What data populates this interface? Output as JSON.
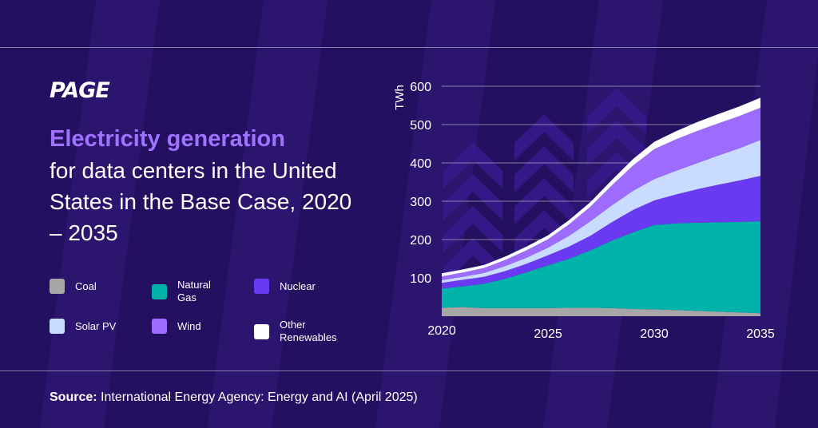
{
  "brand": {
    "logo": "PAGE"
  },
  "title": {
    "highlight": "Electricity generation",
    "rest": "for data centers in the United States in the Base Case, 2020 – 2035"
  },
  "legend": [
    {
      "key": "coal",
      "label": "Coal",
      "color": "#a6a6a6"
    },
    {
      "key": "natural_gas",
      "label": "Natural\nGas",
      "color": "#00b3aa"
    },
    {
      "key": "nuclear",
      "label": "Nuclear",
      "color": "#6a3af3"
    },
    {
      "key": "solar_pv",
      "label": "Solar PV",
      "color": "#c9dcff"
    },
    {
      "key": "wind",
      "label": "Wind",
      "color": "#9d6cff"
    },
    {
      "key": "other_renewables",
      "label": "Other\nRenewables",
      "color": "#ffffff"
    }
  ],
  "source": {
    "label": "Source:",
    "text": " International Energy Agency: Energy and AI (April 2025)"
  },
  "colors": {
    "background": "#241061",
    "accent": "#9f73ff"
  },
  "chart_data": {
    "type": "area",
    "stacked": true,
    "title": "",
    "xlabel": "",
    "ylabel": "TWh",
    "x": [
      2020,
      2021,
      2022,
      2023,
      2024,
      2025,
      2026,
      2027,
      2028,
      2029,
      2030,
      2031,
      2032,
      2033,
      2034,
      2035
    ],
    "x_ticks": [
      2020,
      2025,
      2030,
      2035
    ],
    "y_ticks": [
      100,
      200,
      300,
      400,
      500,
      600
    ],
    "ylim": [
      0,
      600
    ],
    "grid": true,
    "series": [
      {
        "name": "Coal",
        "color": "#a6a6a6",
        "values": [
          22,
          24,
          21,
          21,
          21,
          21,
          22,
          22,
          21,
          19,
          18,
          16,
          14,
          12,
          10,
          8
        ]
      },
      {
        "name": "Natural Gas",
        "color": "#00b3aa",
        "values": [
          50,
          54,
          64,
          77,
          94,
          112,
          128,
          150,
          176,
          200,
          220,
          226,
          230,
          233,
          236,
          240
        ]
      },
      {
        "name": "Nuclear",
        "color": "#6a3af3",
        "values": [
          15,
          17,
          18,
          20,
          22,
          26,
          32,
          38,
          48,
          58,
          64,
          75,
          87,
          98,
          108,
          118
        ]
      },
      {
        "name": "Solar PV",
        "color": "#c9dcff",
        "values": [
          7,
          8,
          10,
          13,
          16,
          20,
          28,
          38,
          44,
          50,
          56,
          62,
          68,
          76,
          84,
          94
        ]
      },
      {
        "name": "Wind",
        "color": "#9d6cff",
        "values": [
          10,
          11,
          13,
          16,
          19,
          22,
          30,
          38,
          52,
          66,
          78,
          82,
          84,
          84,
          84,
          84
        ]
      },
      {
        "name": "Other Renewables",
        "color": "#ffffff",
        "values": [
          8,
          8,
          8,
          9,
          10,
          10,
          11,
          12,
          14,
          17,
          19,
          21,
          23,
          24,
          25,
          26
        ]
      }
    ]
  }
}
